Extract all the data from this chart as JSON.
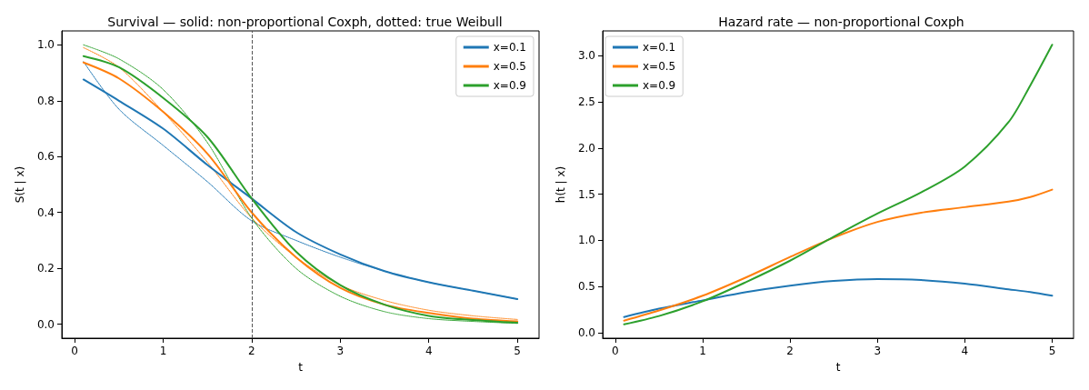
{
  "chart_data": [
    {
      "type": "line",
      "title": "Survival — solid: non-proportional Coxph, dotted: true Weibull",
      "xlabel": "t",
      "ylabel": "S(t | x)",
      "x": [
        0.1,
        0.5,
        1,
        1.5,
        2,
        2.5,
        3,
        3.5,
        4,
        4.5,
        5
      ],
      "series": [
        {
          "name": "x=0.1",
          "color": "#1f77b4",
          "values": [
            0.876,
            0.8,
            0.7,
            0.57,
            0.45,
            0.33,
            0.25,
            0.19,
            0.15,
            0.12,
            0.09
          ]
        },
        {
          "name": "x=0.5",
          "color": "#ff7f0e",
          "values": [
            0.937,
            0.88,
            0.76,
            0.61,
            0.4,
            0.24,
            0.13,
            0.07,
            0.04,
            0.02,
            0.01
          ]
        },
        {
          "name": "x=0.9",
          "color": "#2ca02c",
          "values": [
            0.96,
            0.92,
            0.81,
            0.67,
            0.45,
            0.26,
            0.14,
            0.07,
            0.03,
            0.015,
            0.005
          ]
        },
        {
          "color": "#1f77b4",
          "line_style": "dotted",
          "values": [
            0.94,
            0.77,
            0.64,
            0.51,
            0.37,
            0.3,
            0.24,
            0.19,
            0.15,
            0.12,
            0.09
          ]
        },
        {
          "color": "#ff7f0e",
          "line_style": "dotted",
          "values": [
            0.99,
            0.92,
            0.76,
            0.58,
            0.38,
            0.24,
            0.14,
            0.085,
            0.05,
            0.03,
            0.017
          ]
        },
        {
          "color": "#2ca02c",
          "line_style": "dotted",
          "values": [
            1.0,
            0.95,
            0.84,
            0.65,
            0.38,
            0.2,
            0.1,
            0.045,
            0.02,
            0.01,
            0.003
          ]
        }
      ],
      "xlim": [
        -0.145,
        5.245
      ],
      "xticks": [
        0,
        1,
        2,
        3,
        4,
        5
      ],
      "ylim": [
        -0.05,
        1.05
      ],
      "yticks": [
        {
          "value": 0,
          "label": "0.0"
        },
        {
          "value": 0.2,
          "label": "0.2"
        },
        {
          "value": 0.4,
          "label": "0.4"
        },
        {
          "value": 0.6,
          "label": "0.6"
        },
        {
          "value": 0.8,
          "label": "0.8"
        },
        {
          "value": 1,
          "label": "1.0"
        }
      ],
      "ref_lines": [
        {
          "axis": "x",
          "value": 2,
          "color": "#555555",
          "line_style": "dashed"
        }
      ],
      "legend": "top right",
      "grid": false,
      "marker": "none",
      "line_style": "solid"
    },
    {
      "type": "line",
      "title": "Hazard rate — non-proportional Coxph",
      "xlabel": "t",
      "ylabel": "h(t | x)",
      "x": [
        0.1,
        0.5,
        1,
        1.5,
        2,
        2.5,
        3,
        3.5,
        4,
        4.5,
        4.75,
        5
      ],
      "series": [
        {
          "name": "x=0.1",
          "color": "#1f77b4",
          "values": [
            0.17,
            0.26,
            0.35,
            0.44,
            0.51,
            0.56,
            0.58,
            0.57,
            0.53,
            0.47,
            0.44,
            0.4
          ]
        },
        {
          "name": "x=0.5",
          "color": "#ff7f0e",
          "values": [
            0.13,
            0.24,
            0.4,
            0.6,
            0.82,
            1.03,
            1.2,
            1.3,
            1.36,
            1.42,
            1.47,
            1.55
          ]
        },
        {
          "name": "x=0.9",
          "color": "#2ca02c",
          "values": [
            0.09,
            0.18,
            0.34,
            0.55,
            0.78,
            1.04,
            1.29,
            1.52,
            1.8,
            2.28,
            2.68,
            3.12
          ]
        }
      ],
      "xlim": [
        -0.145,
        5.245
      ],
      "xticks": [
        0,
        1,
        2,
        3,
        4,
        5
      ],
      "ylim": [
        -0.06,
        3.27
      ],
      "yticks": [
        {
          "value": 0,
          "label": "0.0"
        },
        {
          "value": 0.5,
          "label": "0.5"
        },
        {
          "value": 1,
          "label": "1.0"
        },
        {
          "value": 1.5,
          "label": "1.5"
        },
        {
          "value": 2,
          "label": "2.0"
        },
        {
          "value": 2.5,
          "label": "2.5"
        },
        {
          "value": 3,
          "label": "3.0"
        }
      ],
      "legend": "top left",
      "grid": false,
      "marker": "none",
      "line_style": "solid"
    }
  ]
}
